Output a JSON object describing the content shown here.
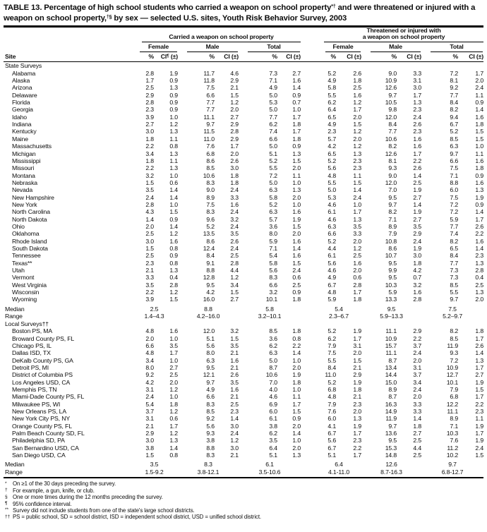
{
  "title": {
    "t1": "TABLE 13. Percentage of high school students who carried a weapon on school property",
    "sup1": "*†",
    "t2": " and were threatened or injured with a weapon on school property,",
    "sup2": "†§",
    "t3": " by sex — selected U.S. sites, Youth Risk Behavior Survey, 2003"
  },
  "header": {
    "site": "Site",
    "carried": "Carried a weapon on school property",
    "threatened_line1": "Threatened or injured with",
    "threatened_line2": "a weapon on school property",
    "female": "Female",
    "male": "Male",
    "total": "Total",
    "pct": "%",
    "ci": "CI",
    "ci_sup": "¶",
    "pm": " (±)"
  },
  "table": {
    "rows": [
      {
        "type": "section",
        "site": "State Surveys"
      },
      {
        "type": "data",
        "site": "Alabama",
        "v": [
          "2.8",
          "1.9",
          "11.7",
          "4.6",
          "7.3",
          "2.7",
          "5.2",
          "2.6",
          "9.0",
          "3.3",
          "7.2",
          "1.7"
        ]
      },
      {
        "type": "data",
        "site": "Alaska",
        "v": [
          "1.7",
          "0.9",
          "11.8",
          "2.9",
          "7.1",
          "1.6",
          "4.9",
          "1.8",
          "10.9",
          "3.1",
          "8.1",
          "2.0"
        ]
      },
      {
        "type": "data",
        "site": "Arizona",
        "v": [
          "2.5",
          "1.3",
          "7.5",
          "2.1",
          "4.9",
          "1.4",
          "5.8",
          "2.5",
          "12.6",
          "3.0",
          "9.2",
          "2.4"
        ]
      },
      {
        "type": "data",
        "site": "Delaware",
        "v": [
          "2.9",
          "0.9",
          "6.6",
          "1.5",
          "5.0",
          "0.9",
          "5.5",
          "1.6",
          "9.7",
          "1.7",
          "7.7",
          "1.1"
        ]
      },
      {
        "type": "data",
        "site": "Florida",
        "v": [
          "2.8",
          "0.9",
          "7.7",
          "1.2",
          "5.3",
          "0.7",
          "6.2",
          "1.2",
          "10.5",
          "1.3",
          "8.4",
          "0.9"
        ]
      },
      {
        "type": "data",
        "site": "Georgia",
        "v": [
          "2.3",
          "0.9",
          "7.7",
          "2.0",
          "5.0",
          "1.0",
          "6.4",
          "1.7",
          "9.8",
          "2.3",
          "8.2",
          "1.4"
        ]
      },
      {
        "type": "data",
        "site": "Idaho",
        "v": [
          "3.9",
          "1.0",
          "11.1",
          "2.7",
          "7.7",
          "1.7",
          "6.5",
          "2.0",
          "12.0",
          "2.4",
          "9.4",
          "1.6"
        ]
      },
      {
        "type": "data",
        "site": "Indiana",
        "v": [
          "2.7",
          "1.2",
          "9.7",
          "2.9",
          "6.2",
          "1.8",
          "4.9",
          "1.5",
          "8.4",
          "2.6",
          "6.7",
          "1.8"
        ]
      },
      {
        "type": "data",
        "site": "Kentucky",
        "v": [
          "3.0",
          "1.3",
          "11.5",
          "2.8",
          "7.4",
          "1.7",
          "2.3",
          "1.2",
          "7.7",
          "2.3",
          "5.2",
          "1.5"
        ]
      },
      {
        "type": "data",
        "site": "Maine",
        "v": [
          "1.8",
          "1.1",
          "11.0",
          "2.9",
          "6.6",
          "1.8",
          "5.7",
          "2.0",
          "10.6",
          "1.6",
          "8.5",
          "1.5"
        ]
      },
      {
        "type": "data",
        "site": "Massachusetts",
        "v": [
          "2.2",
          "0.8",
          "7.6",
          "1.7",
          "5.0",
          "0.9",
          "4.2",
          "1.2",
          "8.2",
          "1.6",
          "6.3",
          "1.0"
        ]
      },
      {
        "type": "data",
        "site": "Michigan",
        "v": [
          "3.4",
          "1.3",
          "6.8",
          "2.0",
          "5.1",
          "1.3",
          "6.5",
          "1.3",
          "12.6",
          "1.7",
          "9.7",
          "1.1"
        ]
      },
      {
        "type": "data",
        "site": "Mississippi",
        "v": [
          "1.8",
          "1.1",
          "8.6",
          "2.6",
          "5.2",
          "1.5",
          "5.2",
          "2.3",
          "8.1",
          "2.2",
          "6.6",
          "1.6"
        ]
      },
      {
        "type": "data",
        "site": "Missouri",
        "v": [
          "2.2",
          "1.3",
          "8.5",
          "3.0",
          "5.5",
          "2.0",
          "5.6",
          "2.3",
          "9.3",
          "2.6",
          "7.5",
          "1.8"
        ]
      },
      {
        "type": "data",
        "site": "Montana",
        "v": [
          "3.2",
          "1.0",
          "10.6",
          "1.8",
          "7.2",
          "1.1",
          "4.8",
          "1.1",
          "9.0",
          "1.4",
          "7.1",
          "0.9"
        ]
      },
      {
        "type": "data",
        "site": "Nebraska",
        "v": [
          "1.5",
          "0.6",
          "8.3",
          "1.8",
          "5.0",
          "1.0",
          "5.5",
          "1.5",
          "12.0",
          "2.5",
          "8.8",
          "1.6"
        ]
      },
      {
        "type": "data",
        "site": "Nevada",
        "v": [
          "3.5",
          "1.4",
          "9.0",
          "2.4",
          "6.3",
          "1.3",
          "5.0",
          "1.4",
          "7.0",
          "1.9",
          "6.0",
          "1.3"
        ]
      },
      {
        "type": "data",
        "site": "New Hampshire",
        "v": [
          "2.4",
          "1.4",
          "8.9",
          "3.3",
          "5.8",
          "2.0",
          "5.3",
          "2.4",
          "9.5",
          "2.7",
          "7.5",
          "1.9"
        ]
      },
      {
        "type": "data",
        "site": "New York",
        "v": [
          "2.8",
          "1.0",
          "7.5",
          "1.6",
          "5.2",
          "1.0",
          "4.6",
          "1.0",
          "9.7",
          "1.4",
          "7.2",
          "0.9"
        ]
      },
      {
        "type": "data",
        "site": "North Carolina",
        "v": [
          "4.3",
          "1.5",
          "8.3",
          "2.4",
          "6.3",
          "1.6",
          "6.1",
          "1.7",
          "8.2",
          "1.9",
          "7.2",
          "1.4"
        ]
      },
      {
        "type": "data",
        "site": "North Dakota",
        "v": [
          "1.4",
          "0.9",
          "9.6",
          "3.2",
          "5.7",
          "1.9",
          "4.6",
          "1.3",
          "7.1",
          "2.7",
          "5.9",
          "1.7"
        ]
      },
      {
        "type": "data",
        "site": "Ohio",
        "v": [
          "2.0",
          "1.4",
          "5.2",
          "2.4",
          "3.6",
          "1.5",
          "6.3",
          "3.5",
          "8.9",
          "3.5",
          "7.7",
          "2.6"
        ]
      },
      {
        "type": "data",
        "site": "Oklahoma",
        "v": [
          "2.5",
          "1.2",
          "13.5",
          "3.5",
          "8.0",
          "2.0",
          "6.6",
          "3.3",
          "7.9",
          "2.9",
          "7.4",
          "2.2"
        ]
      },
      {
        "type": "data",
        "site": "Rhode Island",
        "v": [
          "3.0",
          "1.6",
          "8.6",
          "2.6",
          "5.9",
          "1.6",
          "5.2",
          "2.0",
          "10.8",
          "2.4",
          "8.2",
          "1.6"
        ]
      },
      {
        "type": "data",
        "site": "South Dakota",
        "v": [
          "1.5",
          "0.8",
          "12.4",
          "2.4",
          "7.1",
          "1.4",
          "4.4",
          "1.2",
          "8.6",
          "1.9",
          "6.5",
          "1.4"
        ]
      },
      {
        "type": "data",
        "site": "Tennessee",
        "v": [
          "2.5",
          "0.9",
          "8.4",
          "2.5",
          "5.4",
          "1.6",
          "6.1",
          "2.5",
          "10.7",
          "3.0",
          "8.4",
          "2.3"
        ]
      },
      {
        "type": "data",
        "site": "Texas**",
        "v": [
          "2.3",
          "0.8",
          "9.1",
          "2.8",
          "5.8",
          "1.5",
          "5.6",
          "1.6",
          "9.5",
          "1.8",
          "7.7",
          "1.3"
        ]
      },
      {
        "type": "data",
        "site": "Utah",
        "v": [
          "2.1",
          "1.3",
          "8.8",
          "4.4",
          "5.6",
          "2.4",
          "4.6",
          "2.0",
          "9.9",
          "4.2",
          "7.3",
          "2.8"
        ]
      },
      {
        "type": "data",
        "site": "Vermont",
        "v": [
          "3.3",
          "0.4",
          "12.8",
          "1.2",
          "8.3",
          "0.6",
          "4.9",
          "0.6",
          "9.5",
          "0.7",
          "7.3",
          "0.4"
        ]
      },
      {
        "type": "data",
        "site": "West Virginia",
        "v": [
          "3.5",
          "2.8",
          "9.5",
          "3.4",
          "6.6",
          "2.5",
          "6.7",
          "2.8",
          "10.3",
          "3.2",
          "8.5",
          "2.5"
        ]
      },
      {
        "type": "data",
        "site": "Wisconsin",
        "v": [
          "2.2",
          "1.2",
          "4.2",
          "1.5",
          "3.2",
          "0.9",
          "4.8",
          "1.7",
          "5.9",
          "1.6",
          "5.5",
          "1.3"
        ]
      },
      {
        "type": "data",
        "site": "Wyoming",
        "v": [
          "3.9",
          "1.5",
          "16.0",
          "2.7",
          "10.1",
          "1.8",
          "5.9",
          "1.8",
          "13.3",
          "2.8",
          "9.7",
          "2.0"
        ]
      },
      {
        "type": "median",
        "site": "Median",
        "v": [
          "2.5",
          "8.8",
          "5.8",
          "5.4",
          "9.5",
          "7.5"
        ]
      },
      {
        "type": "range",
        "site": "Range",
        "v": [
          "1.4–4.3",
          "4.2–16.0",
          "3.2–10.1",
          "2.3–6.7",
          "5.9–13.3",
          "5.2–9.7"
        ]
      },
      {
        "type": "section",
        "site": "Local Surveys††"
      },
      {
        "type": "data",
        "site": "Boston PS, MA",
        "v": [
          "4.8",
          "1.6",
          "12.0",
          "3.2",
          "8.5",
          "1.8",
          "5.2",
          "1.9",
          "11.1",
          "2.9",
          "8.2",
          "1.8"
        ]
      },
      {
        "type": "data",
        "site": "Broward County PS, FL",
        "v": [
          "2.0",
          "1.0",
          "5.1",
          "1.5",
          "3.6",
          "0.8",
          "6.2",
          "1.7",
          "10.9",
          "2.2",
          "8.5",
          "1.7"
        ]
      },
      {
        "type": "data",
        "site": "Chicago PS, IL",
        "v": [
          "6.6",
          "3.5",
          "5.6",
          "3.5",
          "6.2",
          "2.2",
          "7.9",
          "3.1",
          "15.7",
          "3.7",
          "11.9",
          "2.6"
        ]
      },
      {
        "type": "data",
        "site": "Dallas ISD, TX",
        "v": [
          "4.8",
          "1.7",
          "8.0",
          "2.1",
          "6.3",
          "1.4",
          "7.5",
          "2.0",
          "11.1",
          "2.4",
          "9.3",
          "1.4"
        ]
      },
      {
        "type": "data",
        "site": "DeKalb County PS, GA",
        "v": [
          "3.4",
          "1.0",
          "6.3",
          "1.6",
          "5.0",
          "1.0",
          "5.5",
          "1.5",
          "8.7",
          "2.0",
          "7.2",
          "1.3"
        ]
      },
      {
        "type": "data",
        "site": "Detroit PS, MI",
        "v": [
          "8.0",
          "2.7",
          "9.5",
          "2.1",
          "8.7",
          "2.0",
          "8.4",
          "2.1",
          "13.4",
          "3.1",
          "10.9",
          "1.7"
        ]
      },
      {
        "type": "data",
        "site": "District of Columbia PS",
        "v": [
          "9.2",
          "2.5",
          "12.1",
          "2.6",
          "10.6",
          "1.9",
          "11.0",
          "2.9",
          "14.4",
          "3.7",
          "12.7",
          "2.7"
        ]
      },
      {
        "type": "data",
        "site": "Los Angeles USD, CA",
        "v": [
          "4.2",
          "2.0",
          "9.7",
          "3.5",
          "7.0",
          "1.8",
          "5.2",
          "1.9",
          "15.0",
          "3.4",
          "10.1",
          "1.9"
        ]
      },
      {
        "type": "data",
        "site": "Memphis PS, TN",
        "v": [
          "3.1",
          "1.2",
          "4.9",
          "1.6",
          "4.0",
          "1.0",
          "6.8",
          "1.8",
          "8.9",
          "2.4",
          "7.9",
          "1.5"
        ]
      },
      {
        "type": "data",
        "site": "Miami-Dade County PS, FL",
        "v": [
          "2.4",
          "1.0",
          "6.6",
          "2.1",
          "4.6",
          "1.1",
          "4.8",
          "2.1",
          "8.7",
          "2.0",
          "6.8",
          "1.7"
        ]
      },
      {
        "type": "data",
        "site": "Milwaukee PS, WI",
        "v": [
          "5.4",
          "1.8",
          "8.3",
          "2.5",
          "6.9",
          "1.7",
          "7.9",
          "2.3",
          "16.3",
          "3.3",
          "12.2",
          "2.2"
        ]
      },
      {
        "type": "data",
        "site": "New Orleans PS, LA",
        "v": [
          "3.7",
          "1.2",
          "8.5",
          "2.3",
          "6.0",
          "1.5",
          "7.6",
          "2.0",
          "14.9",
          "3.3",
          "11.1",
          "2.3"
        ]
      },
      {
        "type": "data",
        "site": "New York City PS, NY",
        "v": [
          "3.1",
          "0.6",
          "9.2",
          "1.4",
          "6.1",
          "0.9",
          "6.0",
          "1.3",
          "11.9",
          "1.4",
          "8.9",
          "1.1"
        ]
      },
      {
        "type": "data",
        "site": "Orange County PS, FL",
        "v": [
          "2.1",
          "1.7",
          "5.6",
          "3.0",
          "3.8",
          "2.0",
          "4.1",
          "1.9",
          "9.7",
          "1.8",
          "7.1",
          "1.9"
        ]
      },
      {
        "type": "data",
        "site": "Palm Beach County SD, FL",
        "v": [
          "2.9",
          "1.2",
          "9.3",
          "2.4",
          "6.2",
          "1.4",
          "6.7",
          "1.7",
          "13.6",
          "2.7",
          "10.3",
          "1.7"
        ]
      },
      {
        "type": "data",
        "site": "Philadelphia SD, PA",
        "v": [
          "3.0",
          "1.3",
          "3.8",
          "1.2",
          "3.5",
          "1.0",
          "5.6",
          "2.3",
          "9.5",
          "2.5",
          "7.6",
          "1.9"
        ]
      },
      {
        "type": "data",
        "site": "San Bernardino USD, CA",
        "v": [
          "3.8",
          "1.4",
          "8.8",
          "3.0",
          "6.4",
          "2.0",
          "6.7",
          "2.2",
          "15.3",
          "4.4",
          "11.2",
          "2.4"
        ]
      },
      {
        "type": "data",
        "site": "San Diego USD, CA",
        "v": [
          "1.5",
          "0.8",
          "8.3",
          "2.1",
          "5.1",
          "1.3",
          "5.1",
          "1.7",
          "14.8",
          "2.5",
          "10.2",
          "1.5"
        ]
      },
      {
        "type": "median",
        "site": "Median",
        "v": [
          "3.5",
          "8.3",
          "6.1",
          "6.4",
          "12.6",
          "9.7"
        ]
      },
      {
        "type": "range",
        "site": "Range",
        "v": [
          "1.5-9.2",
          "3.8-12.1",
          "3.5-10.6",
          "4.1-11.0",
          "8.7-16.3",
          "6.8-12.7"
        ]
      }
    ]
  },
  "footnotes": [
    {
      "marker": "*",
      "text": "On ≥1 of the 30 days preceding the survey."
    },
    {
      "marker": "†",
      "text": "For example, a gun, knife, or club."
    },
    {
      "marker": "§",
      "text": "One or more times during the 12 months preceding the survey."
    },
    {
      "marker": "¶",
      "text": "95% confidence interval."
    },
    {
      "marker": "**",
      "text": "Survey did not include students from one of the state's large school districts."
    },
    {
      "marker": "††",
      "text": "PS = public school, SD = school district, ISD = independent school district, USD = unified school district."
    }
  ]
}
